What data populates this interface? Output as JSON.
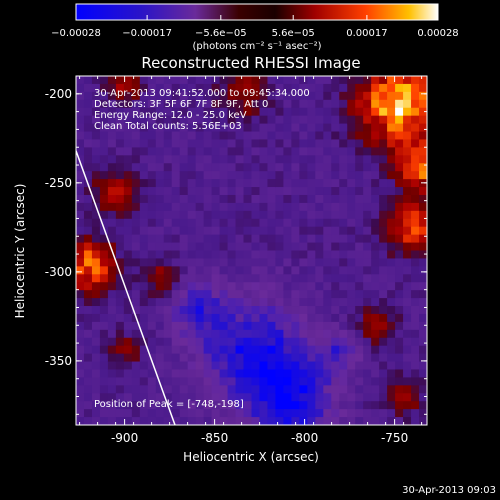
{
  "colorbar": {
    "tick_labels": [
      "-0.00028",
      "-0.00017",
      "-5.6e-05",
      "5.6e-05",
      "0.00017",
      "0.00028"
    ],
    "units_label": "(photons cm⁻² s⁻¹ asec⁻²)",
    "range": [
      -0.00028,
      0.00028
    ]
  },
  "annotations": [
    "30-Apr-2013 09:41:52.000 to 09:45:34.000",
    "Detectors: 3F 5F 6F 7F 8F 9F, Att 0",
    "Energy Range: 12.0 - 25.0 keV",
    "Clean     Total counts: 5.56E+03"
  ],
  "peak_label": "Position of Peak = [-748,-198]",
  "footer_timestamp": "30-Apr-2013 09:03",
  "chart_data": {
    "type": "heatmap",
    "title": "Reconstructed RHESSI Image",
    "xlabel": "Heliocentric X (arcsec)",
    "ylabel": "Heliocentric Y (arcsec)",
    "xlim": [
      -927,
      -732
    ],
    "ylim": [
      -386,
      -190
    ],
    "x_ticks": [
      -900,
      -850,
      -800,
      -750
    ],
    "y_ticks": [
      -200,
      -250,
      -300,
      -350
    ],
    "x_tick_labels": [
      "-900",
      "-850",
      "-800",
      "-750"
    ],
    "y_tick_labels": [
      "-200",
      "-250",
      "-300",
      "-350"
    ],
    "peak_position": [
      -748,
      -198
    ],
    "limb_line": [
      [
        -927,
        -232
      ],
      [
        -872,
        -386
      ]
    ],
    "hot_regions": [
      {
        "x": -748,
        "y": -205,
        "r": 22,
        "v": 0.00028
      },
      {
        "x": -735,
        "y": -240,
        "r": 14,
        "v": 0.00022
      },
      {
        "x": -740,
        "y": -275,
        "r": 14,
        "v": 0.0002
      },
      {
        "x": -920,
        "y": -297,
        "r": 14,
        "v": 0.00024
      },
      {
        "x": -905,
        "y": -255,
        "r": 12,
        "v": 0.00015
      },
      {
        "x": -900,
        "y": -195,
        "r": 10,
        "v": 0.00012
      },
      {
        "x": -835,
        "y": -200,
        "r": 14,
        "v": 0.0001
      },
      {
        "x": -880,
        "y": -305,
        "r": 10,
        "v": 0.0001
      },
      {
        "x": -760,
        "y": -330,
        "r": 10,
        "v": 0.00012
      },
      {
        "x": -745,
        "y": -370,
        "r": 10,
        "v": 0.0001
      },
      {
        "x": -900,
        "y": -345,
        "r": 10,
        "v": 8e-05
      }
    ],
    "cold_regions": [
      {
        "x": -830,
        "y": -345,
        "r": 28,
        "v": -0.00017
      },
      {
        "x": -808,
        "y": -370,
        "r": 22,
        "v": -0.0002
      },
      {
        "x": -860,
        "y": -320,
        "r": 14,
        "v": -0.00012
      },
      {
        "x": -780,
        "y": -345,
        "r": 10,
        "v": -0.0001
      }
    ]
  }
}
